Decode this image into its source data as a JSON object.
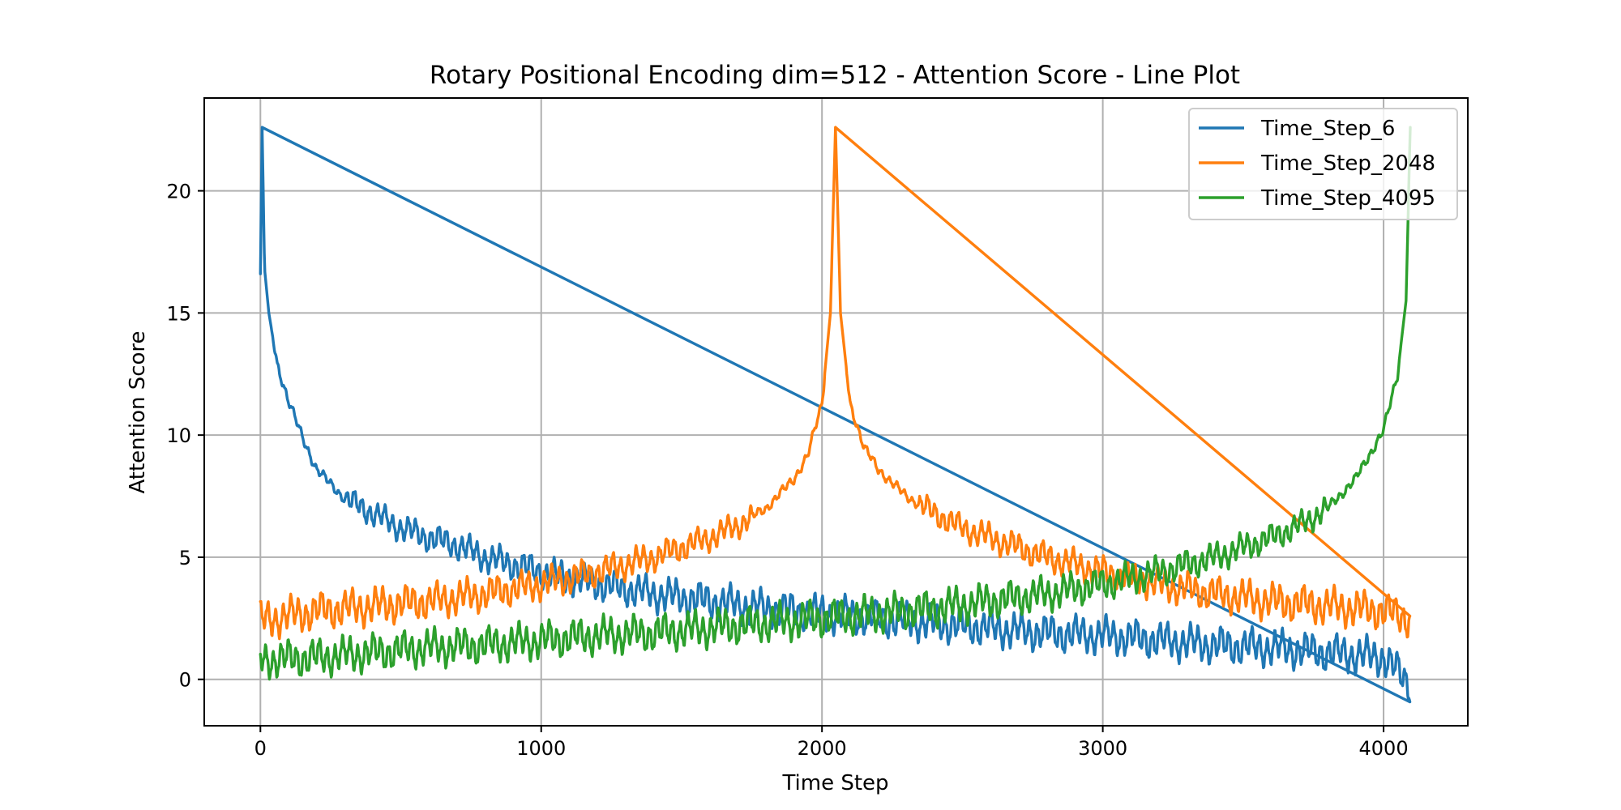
{
  "chart_data": {
    "type": "line",
    "title": "Rotary Positional Encoding dim=512 - Attention Score - Line Plot",
    "xlabel": "Time Step",
    "ylabel": "Attention Score",
    "xlim": [
      -200,
      4300
    ],
    "ylim": [
      -1.9,
      23.8
    ],
    "xticks": [
      0,
      1000,
      2000,
      3000,
      4000
    ],
    "xtick_labels": [
      "0",
      "1000",
      "2000",
      "3000",
      "4000"
    ],
    "yticks": [
      0,
      5,
      10,
      15,
      20
    ],
    "ytick_labels": [
      "0",
      "5",
      "10",
      "15",
      "20"
    ],
    "grid": true,
    "legend_position": "upper-right",
    "sequence_length": 4096,
    "series": [
      {
        "name": "Time_Step_6",
        "color": "#1f77b4",
        "peak_x": 6,
        "peak_y": 22.6,
        "points": [
          [
            0,
            16.6
          ],
          [
            6,
            22.6
          ],
          [
            15,
            16.8
          ],
          [
            30,
            15.0
          ],
          [
            60,
            12.9
          ],
          [
            100,
            11.4
          ],
          [
            150,
            9.9
          ],
          [
            200,
            8.6
          ],
          [
            300,
            7.4
          ],
          [
            400,
            6.8
          ],
          [
            500,
            6.2
          ],
          [
            600,
            5.8
          ],
          [
            700,
            5.5
          ],
          [
            800,
            5.0
          ],
          [
            900,
            4.7
          ],
          [
            1000,
            4.4
          ],
          [
            1200,
            3.9
          ],
          [
            1400,
            3.5
          ],
          [
            1600,
            3.2
          ],
          [
            1800,
            2.9
          ],
          [
            2000,
            2.7
          ],
          [
            2200,
            2.5
          ],
          [
            2400,
            2.3
          ],
          [
            2600,
            2.1
          ],
          [
            2800,
            1.9
          ],
          [
            3000,
            1.8
          ],
          [
            3200,
            1.6
          ],
          [
            3400,
            1.4
          ],
          [
            3600,
            1.3
          ],
          [
            3800,
            1.1
          ],
          [
            4000,
            0.9
          ],
          [
            4095,
            -0.2
          ]
        ]
      },
      {
        "name": "Time_Step_2048",
        "color": "#ff7f0e",
        "peak_x": 2048,
        "peak_y": 22.6,
        "points": [
          [
            0,
            2.4
          ],
          [
            200,
            2.8
          ],
          [
            400,
            3.0
          ],
          [
            600,
            3.2
          ],
          [
            800,
            3.5
          ],
          [
            1000,
            3.9
          ],
          [
            1200,
            4.4
          ],
          [
            1400,
            5.0
          ],
          [
            1600,
            5.8
          ],
          [
            1700,
            6.3
          ],
          [
            1800,
            7.0
          ],
          [
            1900,
            8.2
          ],
          [
            1950,
            9.2
          ],
          [
            2000,
            11.3
          ],
          [
            2030,
            15.0
          ],
          [
            2048,
            22.6
          ],
          [
            2066,
            15.0
          ],
          [
            2100,
            11.3
          ],
          [
            2150,
            9.5
          ],
          [
            2200,
            8.6
          ],
          [
            2300,
            7.5
          ],
          [
            2400,
            6.8
          ],
          [
            2500,
            6.2
          ],
          [
            2600,
            5.8
          ],
          [
            2800,
            5.0
          ],
          [
            3000,
            4.4
          ],
          [
            3200,
            3.9
          ],
          [
            3400,
            3.5
          ],
          [
            3600,
            3.2
          ],
          [
            3800,
            3.0
          ],
          [
            4000,
            2.8
          ],
          [
            4095,
            2.5
          ]
        ]
      },
      {
        "name": "Time_Step_4095",
        "color": "#2ca02c",
        "peak_x": 4095,
        "peak_y": 22.6,
        "points": [
          [
            0,
            0.8
          ],
          [
            200,
            0.9
          ],
          [
            400,
            1.1
          ],
          [
            600,
            1.3
          ],
          [
            800,
            1.4
          ],
          [
            1000,
            1.6
          ],
          [
            1200,
            1.8
          ],
          [
            1400,
            1.9
          ],
          [
            1600,
            2.1
          ],
          [
            1800,
            2.3
          ],
          [
            2000,
            2.5
          ],
          [
            2200,
            2.7
          ],
          [
            2400,
            2.9
          ],
          [
            2600,
            3.2
          ],
          [
            2800,
            3.5
          ],
          [
            3000,
            3.9
          ],
          [
            3200,
            4.4
          ],
          [
            3400,
            5.0
          ],
          [
            3600,
            5.8
          ],
          [
            3700,
            6.3
          ],
          [
            3800,
            7.0
          ],
          [
            3900,
            8.2
          ],
          [
            3950,
            9.2
          ],
          [
            4000,
            10.2
          ],
          [
            4050,
            12.5
          ],
          [
            4080,
            15.5
          ],
          [
            4095,
            22.6
          ]
        ]
      }
    ]
  }
}
